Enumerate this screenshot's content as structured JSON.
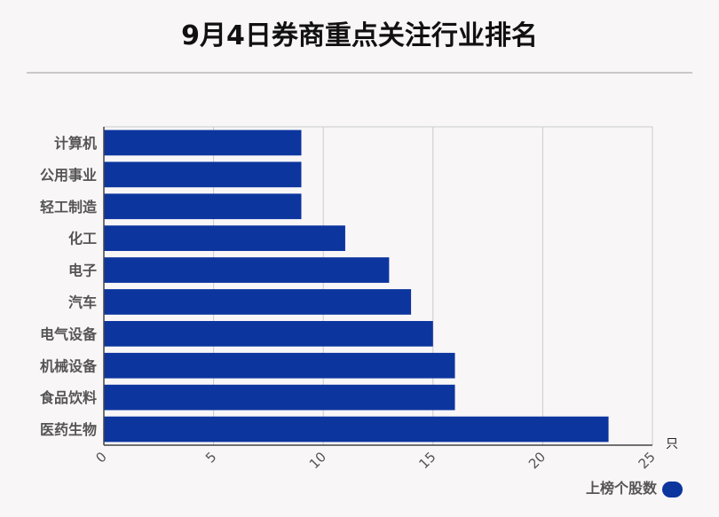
{
  "chart_data": {
    "type": "bar",
    "orientation": "horizontal",
    "title": "9月4日券商重点关注行业排名",
    "xlabel": "",
    "ylabel": "",
    "x_unit": "只",
    "categories": [
      "计算机",
      "公用事业",
      "轻工制造",
      "化工",
      "电子",
      "汽车",
      "电气设备",
      "机械设备",
      "食品饮料",
      "医药生物"
    ],
    "series": [
      {
        "name": "上榜个股数",
        "values": [
          9,
          9,
          9,
          11,
          13,
          14,
          15,
          16,
          16,
          23
        ]
      }
    ],
    "xlim": [
      0,
      25
    ],
    "x_ticks": [
      "0",
      "5",
      "10",
      "15",
      "20",
      "25"
    ],
    "grid": true,
    "legend": "bottom-right",
    "colors": {
      "bar": "#0c359e",
      "grid": "#cccccc",
      "axis": "#444444",
      "background": "#f9f6f8"
    }
  }
}
